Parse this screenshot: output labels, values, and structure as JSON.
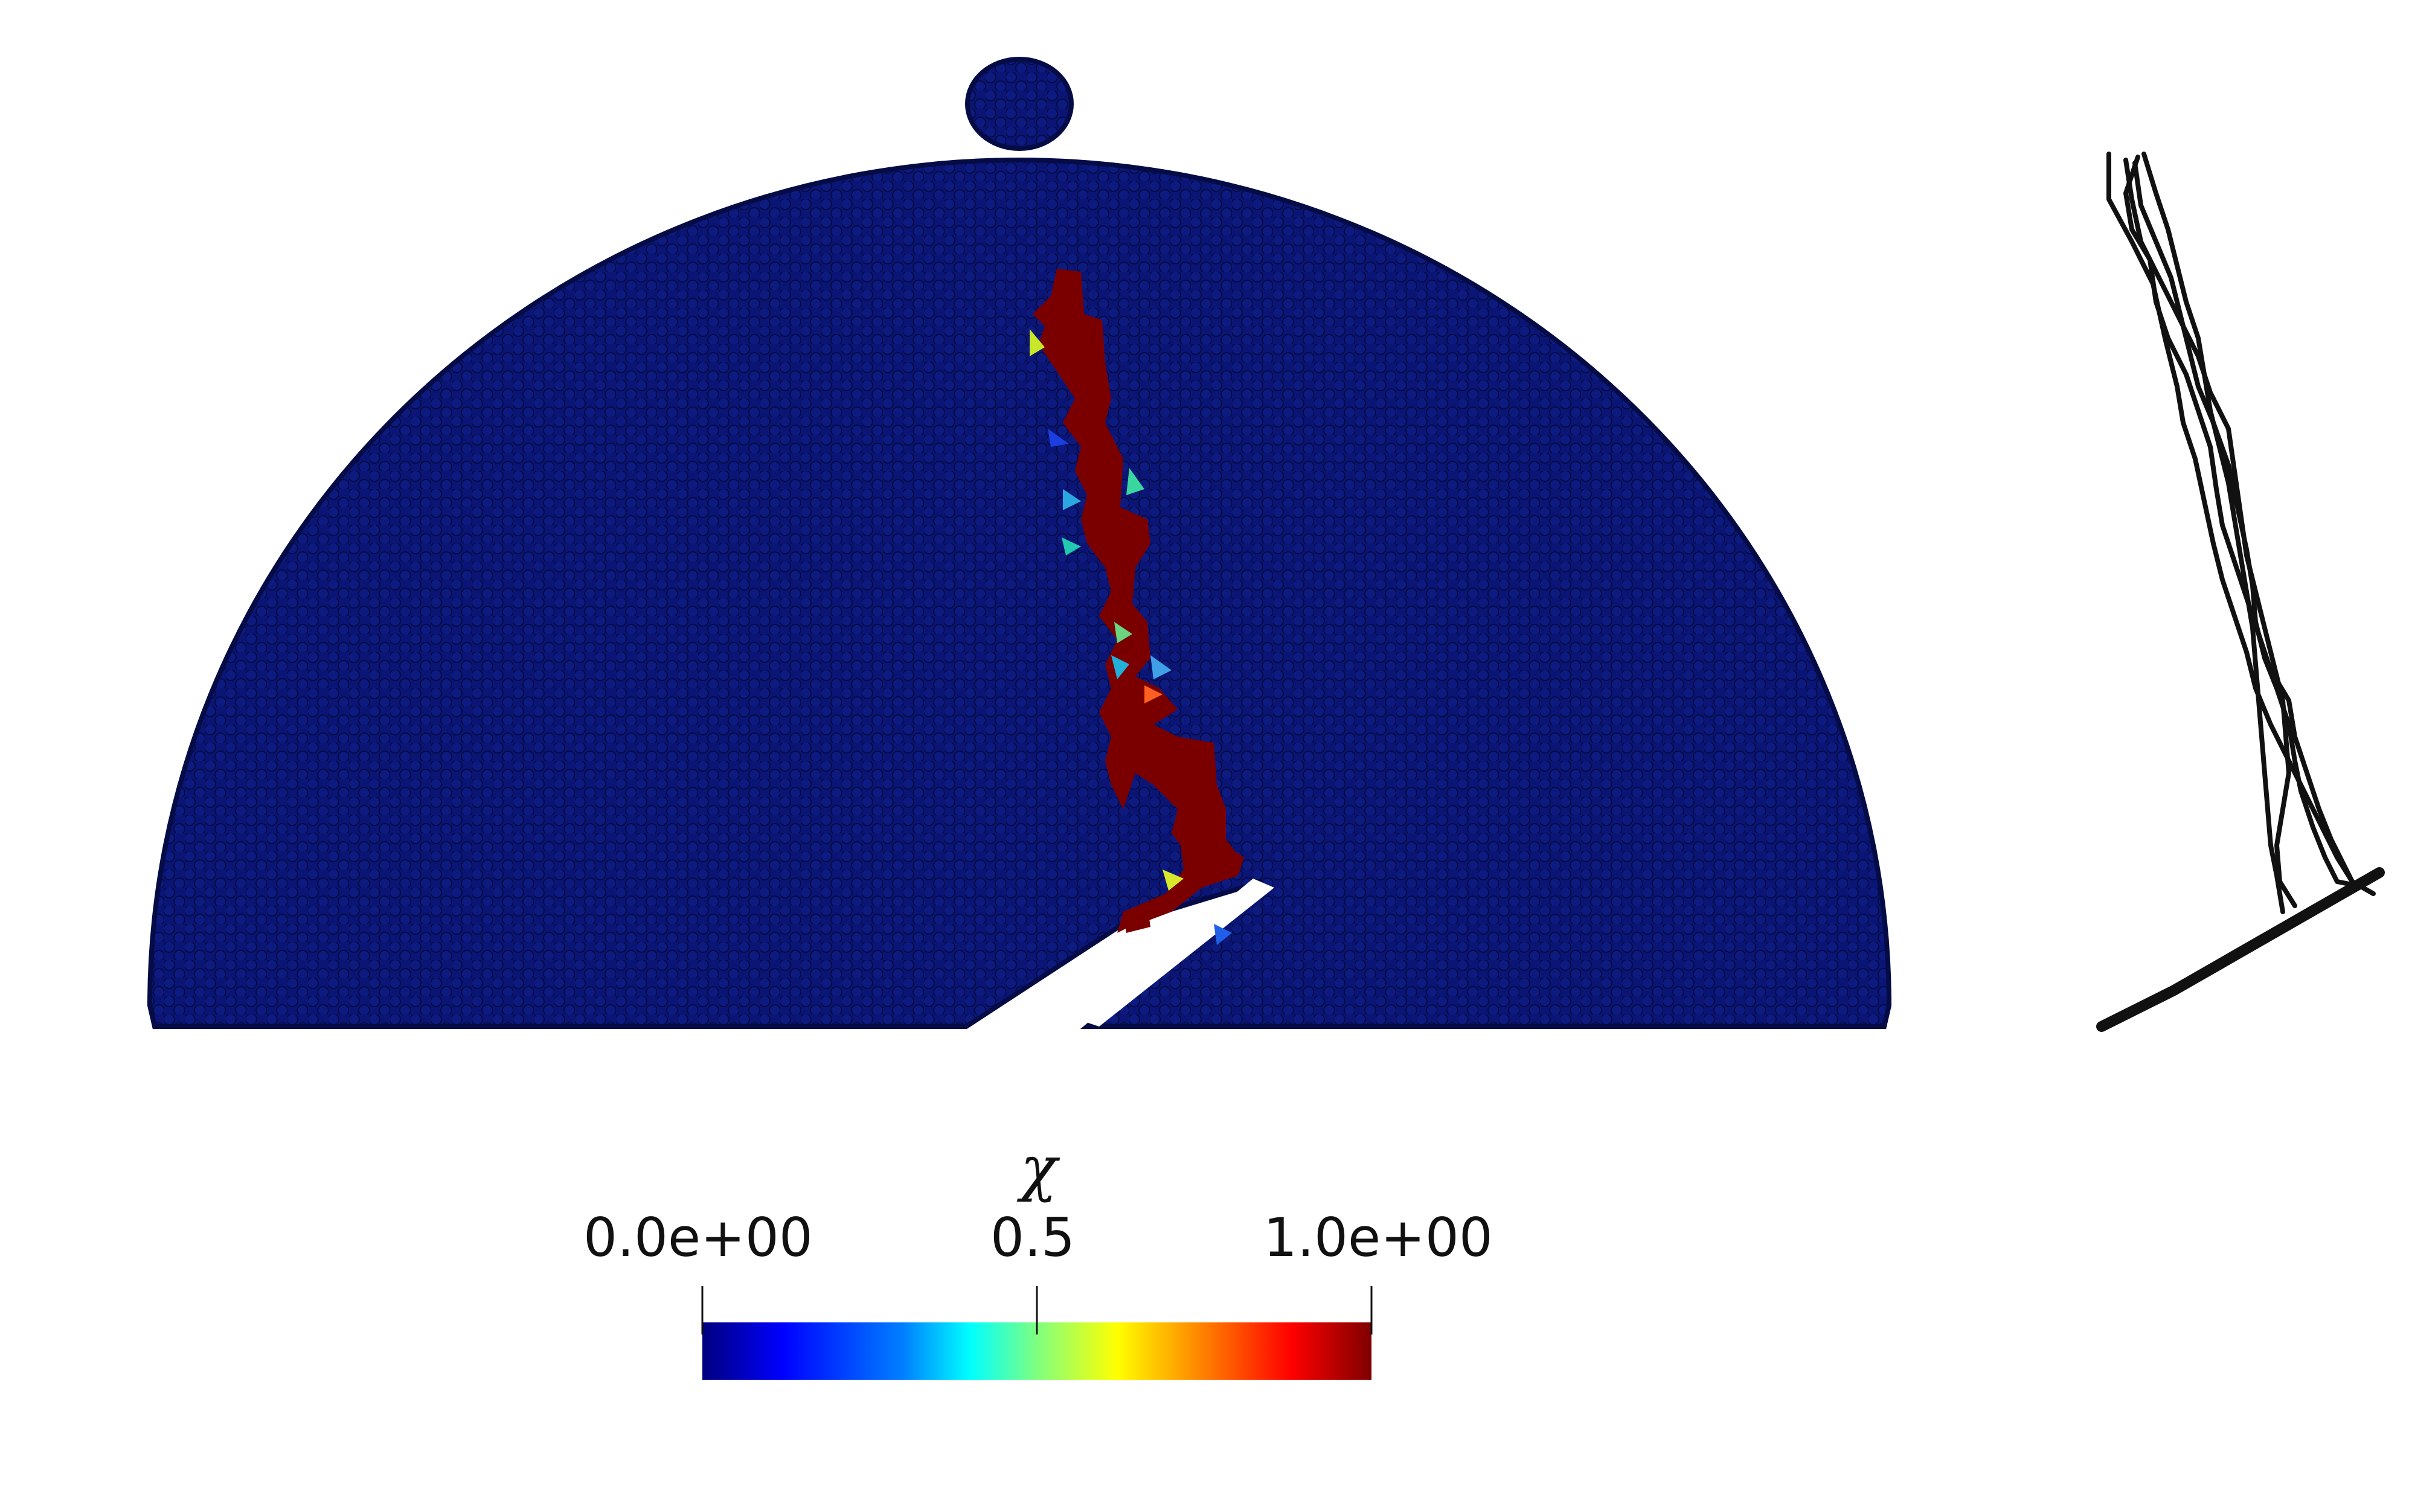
{
  "colorbar": {
    "title": "χ",
    "tick_labels": [
      "0.0e+00",
      "0.5",
      "1.0e+00"
    ],
    "tick_values": [
      0.0,
      0.5,
      1.0
    ],
    "range": [
      0.0,
      1.0
    ],
    "colormap": "jet",
    "gradient_colors": [
      "#00007f",
      "#0000ff",
      "#007fff",
      "#00ffff",
      "#7fff7f",
      "#ffff00",
      "#ff7f00",
      "#ff0000",
      "#7f0000"
    ]
  },
  "colors": {
    "particle_fill": "#0b1575",
    "particle_edge": "#050c45",
    "damage_high": "#7a0000",
    "crack_paths": "#111111",
    "background": "#ffffff"
  }
}
